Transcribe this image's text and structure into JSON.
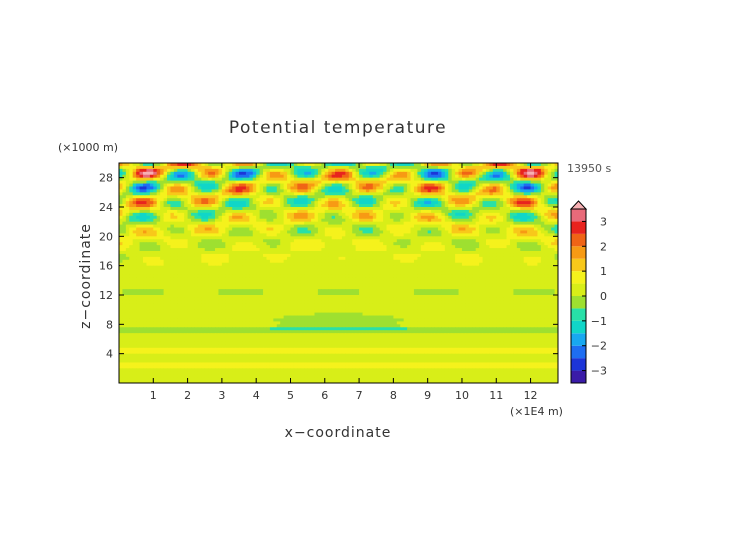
{
  "chart_data": {
    "type": "heatmap",
    "title": "Potential temperature",
    "xlabel": "x−coordinate",
    "ylabel": "z−coordinate",
    "x_unit": "(×1E4 m)",
    "y_unit": "(×1000 m)",
    "time_label": "13950 s",
    "x_ticks": [
      1,
      2,
      3,
      4,
      5,
      6,
      7,
      8,
      9,
      10,
      11,
      12
    ],
    "y_ticks": [
      4,
      8,
      12,
      16,
      20,
      24,
      28
    ],
    "xlim": [
      0,
      12.8
    ],
    "ylim": [
      0,
      30
    ],
    "colorbar": {
      "levels": [
        -4,
        -3.5,
        -3,
        -2.5,
        -2,
        -1.5,
        -1,
        -0.5,
        0,
        0.5,
        1,
        1.5,
        2,
        2.5,
        3,
        3.5,
        4
      ],
      "ticks": [
        -3,
        -2,
        -1,
        0,
        1,
        2,
        3
      ],
      "colors": [
        "#6a0fb5",
        "#3a1ba8",
        "#1c35d8",
        "#1e6ef2",
        "#18a8f0",
        "#10d6c8",
        "#28e0a8",
        "#9ee030",
        "#d8ee18",
        "#f5f21c",
        "#f8c81a",
        "#f79a14",
        "#f06416",
        "#e8231e",
        "#e86a7a",
        "#f8b0b4"
      ]
    }
  }
}
